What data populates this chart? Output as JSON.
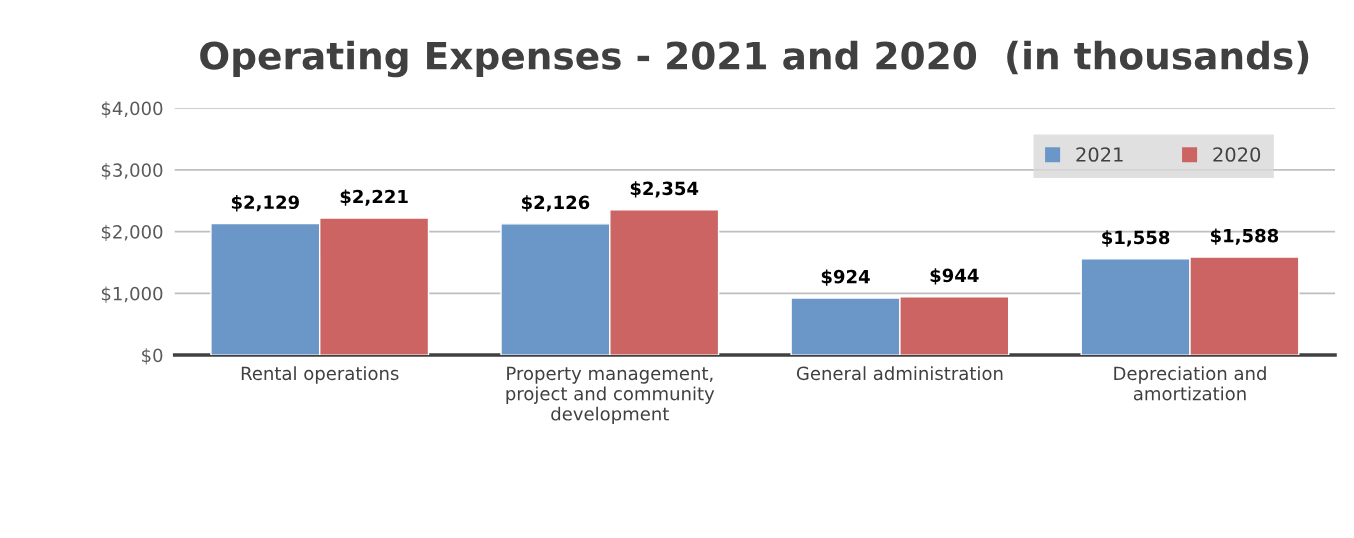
{
  "chart_data": {
    "type": "bar",
    "title": "Operating Expenses - 2021 and 2020  (in thousands)",
    "categories": [
      "Rental operations",
      "Property management,\nproject and community\ndevelopment",
      "General administration",
      "Depreciation and\namortization"
    ],
    "series": [
      {
        "name": "2021",
        "color": "#6a96c8",
        "values": [
          2129,
          2126,
          924,
          1558
        ],
        "value_labels": [
          "$2,129",
          "$2,126",
          "$924",
          "$1,558"
        ]
      },
      {
        "name": "2020",
        "color": "#cd6464",
        "values": [
          2221,
          2354,
          944,
          1588
        ],
        "value_labels": [
          "$2,221",
          "$2,354",
          "$944",
          "$1,588"
        ]
      }
    ],
    "ylim": [
      0,
      4000
    ],
    "yticks": [
      {
        "value": 0,
        "label": "$0"
      },
      {
        "value": 1000,
        "label": "$1,000"
      },
      {
        "value": 2000,
        "label": "$2,000"
      },
      {
        "value": 3000,
        "label": "$3,000"
      },
      {
        "value": 4000,
        "label": "$4,000"
      }
    ],
    "grid": "y",
    "legend": "top right"
  }
}
